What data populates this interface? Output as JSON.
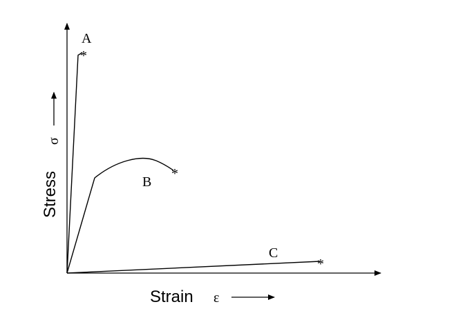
{
  "axes": {
    "x_label": "Strain",
    "x_symbol": "ε",
    "y_label": "Stress",
    "y_symbol": "σ"
  },
  "curves": [
    {
      "id": "A",
      "label": "A",
      "fracture_marker": "*"
    },
    {
      "id": "B",
      "label": "B",
      "fracture_marker": "*"
    },
    {
      "id": "C",
      "label": "C",
      "fracture_marker": "*"
    }
  ],
  "colors": {
    "ink": "#000000",
    "background": "#ffffff"
  }
}
